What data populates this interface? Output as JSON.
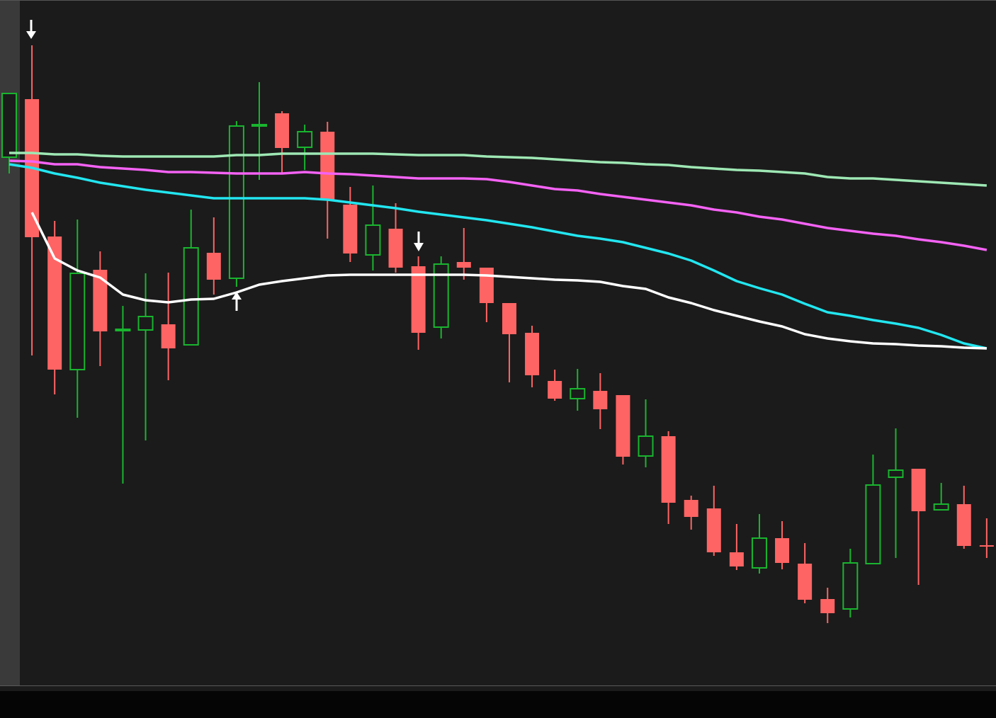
{
  "chart_data": {
    "type": "candlestick",
    "ylim": [
      32,
      1000
    ],
    "up_color": "#19b52f",
    "down_color": "#ff6464",
    "open": [
      778,
      860,
      666,
      478,
      619,
      534,
      534,
      542,
      513,
      643,
      607,
      822,
      840,
      792,
      814,
      711,
      640,
      677,
      624,
      538,
      630,
      622,
      572,
      530,
      462,
      437,
      448,
      442,
      356,
      384,
      294,
      282,
      220,
      198,
      240,
      204,
      154,
      140,
      204,
      326,
      338,
      280,
      288,
      230
    ],
    "high": [
      868,
      936,
      688,
      690,
      645,
      568,
      614,
      615,
      704,
      693,
      829,
      884,
      843,
      824,
      828,
      736,
      738,
      713,
      638,
      638,
      678,
      622,
      572,
      540,
      478,
      479,
      473,
      442,
      436,
      391,
      300,
      314,
      260,
      274,
      264,
      233,
      170,
      225,
      358,
      395,
      338,
      318,
      314,
      268
    ],
    "low": [
      755,
      498,
      443,
      410,
      483,
      317,
      378,
      463,
      513,
      584,
      595,
      746,
      755,
      760,
      663,
      630,
      618,
      615,
      506,
      522,
      605,
      545,
      460,
      453,
      434,
      420,
      394,
      344,
      340,
      260,
      252,
      215,
      195,
      190,
      196,
      148,
      120,
      128,
      204,
      212,
      174,
      280,
      225,
      212
    ],
    "close": [
      868,
      665,
      478,
      614,
      532,
      535,
      553,
      508,
      650,
      605,
      822,
      824,
      791,
      814,
      717,
      642,
      682,
      622,
      530,
      627,
      622,
      572,
      528,
      470,
      437,
      451,
      422,
      355,
      384,
      290,
      270,
      220,
      200,
      240,
      205,
      153,
      134,
      205,
      315,
      336,
      278,
      288,
      229,
      228
    ],
    "series": [
      {
        "color": "#9ee8b4",
        "values": [
          784,
          784,
          782,
          782,
          780,
          779,
          779,
          779,
          779,
          779,
          781,
          781,
          783,
          783,
          783,
          783,
          783,
          782,
          781,
          781,
          781,
          779,
          778,
          777,
          775,
          773,
          771,
          770,
          768,
          767,
          764,
          762,
          760,
          759,
          757,
          755,
          750,
          748,
          748,
          746,
          744,
          742,
          740,
          738
        ]
      },
      {
        "color": "#f462f4",
        "values": [
          773,
          772,
          768,
          768,
          764,
          762,
          760,
          757,
          757,
          756,
          755,
          755,
          755,
          757,
          755,
          754,
          752,
          750,
          748,
          748,
          748,
          747,
          743,
          738,
          733,
          731,
          726,
          722,
          718,
          714,
          710,
          704,
          700,
          694,
          690,
          684,
          678,
          674,
          670,
          667,
          662,
          658,
          653,
          647
        ]
      },
      {
        "color": "#22e6f0",
        "values": [
          768,
          763,
          755,
          749,
          742,
          737,
          732,
          728,
          724,
          720,
          720,
          720,
          720,
          720,
          718,
          714,
          710,
          706,
          701,
          697,
          693,
          689,
          684,
          679,
          673,
          667,
          663,
          658,
          650,
          642,
          632,
          618,
          603,
          593,
          584,
          571,
          559,
          554,
          548,
          543,
          537,
          527,
          515,
          508
        ]
      },
      {
        "color": "#ffffff",
        "values": [
          null,
          700,
          635,
          618,
          608,
          584,
          576,
          573,
          577,
          578,
          587,
          598,
          603,
          607,
          611,
          612,
          612,
          612,
          612,
          612,
          612,
          611,
          609,
          607,
          605,
          604,
          602,
          596,
          592,
          580,
          572,
          562,
          554,
          546,
          539,
          528,
          522,
          518,
          515,
          514,
          512,
          511,
          509,
          508
        ]
      }
    ]
  }
}
